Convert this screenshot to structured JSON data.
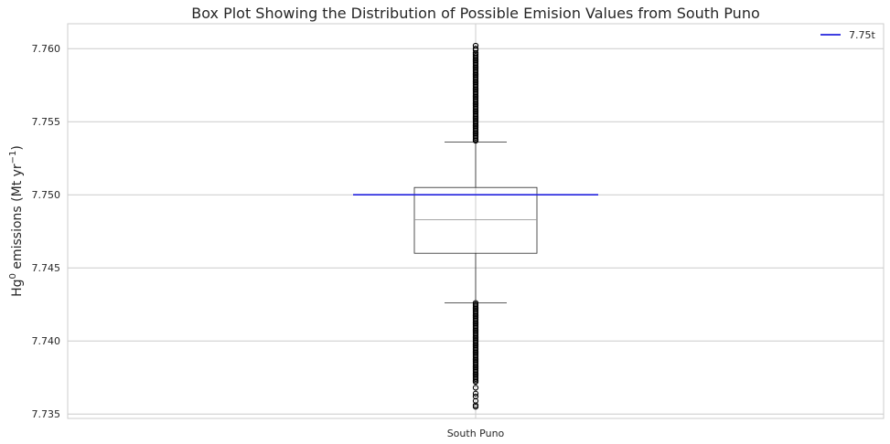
{
  "chart_data": {
    "type": "box",
    "title": "Box Plot Showing the Distribution of Possible Emision Values from South Puno",
    "ylabel": {
      "base": "Hg",
      "sup1": "0",
      "mid": " emissions (Mt yr",
      "sup2": "−1",
      "end": ")"
    },
    "xlabel": "",
    "categories": [
      "South Puno"
    ],
    "ylim": [
      7.7347,
      7.7617
    ],
    "yticks": [
      7.735,
      7.74,
      7.745,
      7.75,
      7.755,
      7.76
    ],
    "ytick_labels": [
      "7.735",
      "7.740",
      "7.745",
      "7.750",
      "7.755",
      "7.760"
    ],
    "grid": true,
    "box": {
      "whisker_low": 7.7426,
      "q1": 7.746,
      "median": 7.7483,
      "q3": 7.7505,
      "whisker_high": 7.7536
    },
    "outliers_high": {
      "min": 7.7536,
      "max": 7.7602,
      "dense_until": 7.7597
    },
    "outliers_low": {
      "min": 7.7355,
      "max": 7.7426,
      "dense_from": 7.7372
    },
    "reference_line": {
      "value": 7.75,
      "label": "7.75t",
      "color": "#2222dd"
    },
    "legend": {
      "position": "top-right",
      "entries": [
        "7.75t"
      ]
    },
    "colors": {
      "box": "#262626",
      "median": "#999999",
      "grid": "#cccccc",
      "outlier": "#000000"
    }
  }
}
